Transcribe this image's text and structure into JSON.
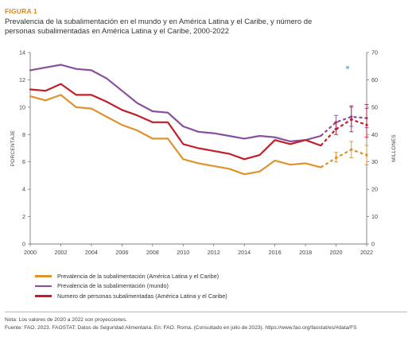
{
  "figure": {
    "label": "FIGURA 1",
    "title": "Prevalencia de la subalimentación en el mundo y en América Latina y el Caribe, y número de personas subalimentadas en América Latina y el Caribe, 2000-2022"
  },
  "notes": {
    "note": "Nota: Los valores de 2020 a 2022 son proyecciones.",
    "source": "Fuente: FAO. 2023. FAOSTAT: Datos de Seguridad Alimentaria. En: FAO. Roma. (Consultado en julio de 2023). https://www.fao.org/faostat/es/#data/FS"
  },
  "chart_data": {
    "type": "line",
    "x_ticks": [
      "2000",
      "2002",
      "2004",
      "2006",
      "2008",
      "2010",
      "2012",
      "2014",
      "2016",
      "2018",
      "2020",
      "2022"
    ],
    "xlim": [
      2000,
      2022
    ],
    "ylabel_left": "PORCENTAJE",
    "ylabel_right": "MILLONES",
    "ylim_left": [
      0,
      14
    ],
    "ylim_right": [
      0,
      70
    ],
    "y_ticks_left": [
      "0",
      "2",
      "4",
      "6",
      "8",
      "10",
      "12",
      "14"
    ],
    "y_ticks_right": [
      "0",
      "10",
      "20",
      "30",
      "40",
      "50",
      "60",
      "70"
    ],
    "grid": false,
    "legend_position": "bottom-left",
    "projection_start": 2020,
    "series": [
      {
        "name": "Prevalencia de la subalimentación (América Latina y el Caribe)",
        "axis": "left",
        "color": "#e0922c",
        "x": [
          2000,
          2001,
          2002,
          2003,
          2004,
          2005,
          2006,
          2007,
          2008,
          2009,
          2010,
          2011,
          2012,
          2013,
          2014,
          2015,
          2016,
          2017,
          2018,
          2019,
          2020,
          2021,
          2022
        ],
        "values": [
          10.8,
          10.5,
          10.9,
          10.0,
          9.9,
          9.3,
          8.7,
          8.3,
          7.7,
          7.7,
          6.2,
          5.9,
          5.7,
          5.5,
          5.1,
          5.3,
          6.1,
          5.8,
          5.9,
          5.6,
          6.3,
          6.9,
          6.5
        ],
        "error_bars": [
          {
            "x": 2020,
            "low": 6.0,
            "high": 6.7
          },
          {
            "x": 2021,
            "low": 6.3,
            "high": 7.5
          },
          {
            "x": 2022,
            "low": 5.8,
            "high": 7.2
          }
        ]
      },
      {
        "name": "Prevalencia de la subalimentación (mundo)",
        "axis": "left",
        "color": "#8a4f9c",
        "x": [
          2000,
          2001,
          2002,
          2003,
          2004,
          2005,
          2006,
          2007,
          2008,
          2009,
          2010,
          2011,
          2012,
          2013,
          2014,
          2015,
          2016,
          2017,
          2018,
          2019,
          2020,
          2021,
          2022
        ],
        "values": [
          12.7,
          12.9,
          13.1,
          12.8,
          12.7,
          12.1,
          11.2,
          10.3,
          9.7,
          9.6,
          8.6,
          8.2,
          8.1,
          7.9,
          7.7,
          7.9,
          7.8,
          7.5,
          7.6,
          7.9,
          8.9,
          9.3,
          9.2
        ],
        "error_bars": [
          {
            "x": 2020,
            "low": 8.4,
            "high": 9.4
          },
          {
            "x": 2021,
            "low": 8.6,
            "high": 10.0
          },
          {
            "x": 2022,
            "low": 8.5,
            "high": 9.9
          }
        ]
      },
      {
        "name": "Numero de personas subalimentadas (América Latina y el Caribe)",
        "axis": "right",
        "color": "#c01f2a",
        "x": [
          2000,
          2001,
          2002,
          2003,
          2004,
          2005,
          2006,
          2007,
          2008,
          2009,
          2010,
          2011,
          2012,
          2013,
          2014,
          2015,
          2016,
          2017,
          2018,
          2019,
          2020,
          2021,
          2022
        ],
        "values": [
          56.5,
          56.0,
          58.5,
          54.5,
          54.5,
          52.0,
          49.0,
          47.0,
          44.5,
          44.5,
          36.5,
          35.0,
          34.0,
          33.0,
          31.0,
          32.5,
          38.0,
          36.5,
          38.0,
          36.0,
          42.0,
          45.5,
          43.5
        ],
        "error_bars": [
          {
            "x": 2020,
            "low": 40.0,
            "high": 44.5
          },
          {
            "x": 2021,
            "low": 41.0,
            "high": 50.5
          },
          {
            "x": 2022,
            "low": 39.0,
            "high": 51.0
          }
        ]
      }
    ],
    "annotations": [
      {
        "type": "dot",
        "axis": "right",
        "x": 2020.75,
        "y": 64.5,
        "color": "#7cc3e6"
      }
    ]
  }
}
